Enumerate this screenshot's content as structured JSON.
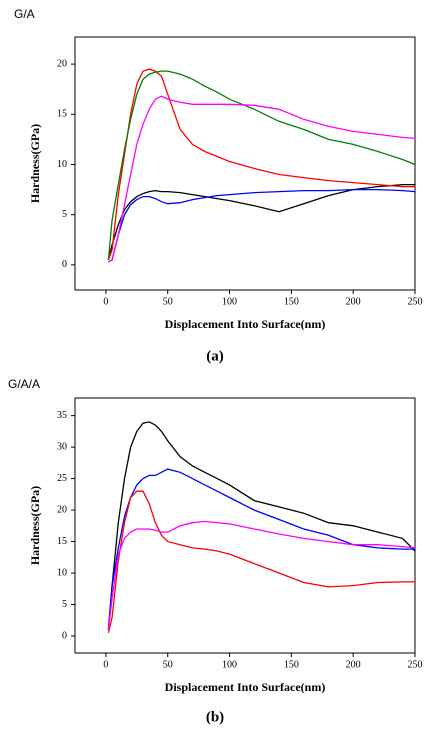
{
  "chart_data": [
    {
      "type": "line",
      "title": "G/A",
      "caption": "(a)",
      "xlabel": "Displacement Into Surface(nm)",
      "ylabel": "Hardness(GPa)",
      "xlim": [
        -25,
        250
      ],
      "xticks": [
        0,
        50,
        100,
        150,
        200,
        250
      ],
      "ylim": [
        -2.5,
        22.7
      ],
      "yticks": [
        0,
        5,
        10,
        15,
        20
      ],
      "x": [
        2,
        5,
        10,
        15,
        20,
        25,
        30,
        35,
        40,
        45,
        50,
        60,
        70,
        80,
        90,
        100,
        120,
        140,
        160,
        180,
        200,
        220,
        240,
        250
      ],
      "series": [
        {
          "color": "#000000",
          "values": [
            0.5,
            2,
            4,
            5.5,
            6.3,
            6.8,
            7.1,
            7.3,
            7.4,
            7.3,
            7.3,
            7.2,
            7,
            6.8,
            6.6,
            6.4,
            5.9,
            5.3,
            6.1,
            6.9,
            7.5,
            7.8,
            8,
            8
          ]
        },
        {
          "color": "#0000ff",
          "values": [
            0.3,
            0.5,
            3,
            5,
            6,
            6.5,
            6.8,
            6.8,
            6.6,
            6.3,
            6.1,
            6.2,
            6.5,
            6.7,
            6.9,
            7,
            7.2,
            7.3,
            7.4,
            7.4,
            7.5,
            7.5,
            7.4,
            7.3
          ]
        },
        {
          "color": "#ff0000",
          "values": [
            0.5,
            1.5,
            7,
            11,
            15,
            18,
            19.3,
            19.5,
            19.3,
            18.8,
            17,
            13.5,
            12,
            11.3,
            10.8,
            10.3,
            9.6,
            9,
            8.7,
            8.4,
            8.2,
            8,
            7.8,
            7.8
          ]
        },
        {
          "color": "#008000",
          "values": [
            0.5,
            4.5,
            8,
            11.5,
            14.5,
            17,
            18.5,
            19,
            19.2,
            19.3,
            19.3,
            19,
            18.5,
            17.8,
            17.2,
            16.5,
            15.5,
            14.3,
            13.5,
            12.5,
            12,
            11.3,
            10.5,
            10
          ]
        },
        {
          "color": "#ff00ff",
          "values": [
            0.3,
            0.5,
            3,
            6,
            9,
            12,
            14,
            15.5,
            16.5,
            16.8,
            16.5,
            16.2,
            16,
            16,
            16,
            16,
            15.9,
            15.5,
            14.5,
            13.8,
            13.3,
            13,
            12.7,
            12.6
          ]
        }
      ]
    },
    {
      "type": "line",
      "title": "G/A/A",
      "caption": "(b)",
      "xlabel": "Displacement Into Surface(nm)",
      "ylabel": "Hardness(GPa)",
      "xlim": [
        -25,
        250
      ],
      "xticks": [
        0,
        50,
        100,
        150,
        200,
        250
      ],
      "ylim": [
        -2.7,
        37.8
      ],
      "yticks": [
        0,
        5,
        10,
        15,
        20,
        25,
        30,
        35
      ],
      "x": [
        2,
        5,
        10,
        15,
        20,
        25,
        30,
        35,
        40,
        45,
        50,
        60,
        70,
        80,
        90,
        100,
        120,
        140,
        160,
        180,
        200,
        220,
        240,
        250
      ],
      "series": [
        {
          "color": "#000000",
          "values": [
            1,
            8,
            18,
            25,
            30,
            32.5,
            33.8,
            34,
            33.5,
            32.5,
            31,
            28.5,
            27,
            26,
            25,
            24,
            21.5,
            20.5,
            19.5,
            18,
            17.5,
            16.5,
            15.5,
            13.5
          ]
        },
        {
          "color": "#0000ff",
          "values": [
            1,
            8,
            14,
            19,
            22,
            24,
            25,
            25.5,
            25.5,
            26,
            26.5,
            26,
            25,
            24,
            23,
            22,
            20,
            18.5,
            17,
            16,
            14.5,
            14,
            13.8,
            13.8
          ]
        },
        {
          "color": "#ff0000",
          "values": [
            0.5,
            3,
            12,
            18,
            22,
            23,
            23,
            21,
            18,
            16,
            15,
            14.5,
            14,
            13.8,
            13.5,
            13,
            11.5,
            10,
            8.5,
            7.8,
            8,
            8.5,
            8.6,
            8.6
          ]
        },
        {
          "color": "#ff00ff",
          "values": [
            1,
            6,
            13,
            15.5,
            16.5,
            17,
            17,
            17,
            16.8,
            16.5,
            16.5,
            17.5,
            18,
            18.2,
            18,
            17.8,
            17,
            16.2,
            15.5,
            15,
            14.5,
            14.5,
            14.2,
            14
          ]
        }
      ]
    }
  ]
}
